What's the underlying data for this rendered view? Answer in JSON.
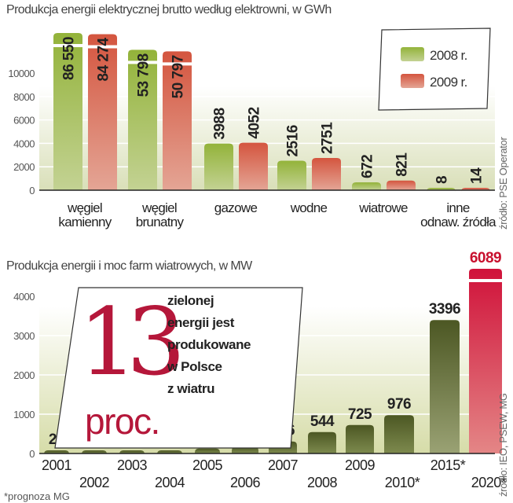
{
  "colors": {
    "green2008": "#9bb840",
    "red2009": "#d65a4a",
    "olive": "#56632a",
    "forecast2020": "#d4163c",
    "accent": "#b5173a"
  },
  "chart_data": [
    {
      "type": "bar",
      "title": "Produkcja energii elektrycznej brutto według elektrowni, w GWh",
      "categories": [
        [
          "węgiel",
          "kamienny"
        ],
        [
          "węgiel",
          "brunatny"
        ],
        [
          "gazowe"
        ],
        [
          "wodne"
        ],
        [
          "wiatrowe"
        ],
        [
          "inne",
          "odnaw. źródła"
        ]
      ],
      "series": [
        {
          "name": "2008 r.",
          "values": [
            86550,
            53798,
            3988,
            2516,
            672,
            8
          ],
          "labels": [
            "86 550",
            "53 798",
            "3988",
            "2516",
            "672",
            "8"
          ]
        },
        {
          "name": "2009 r.",
          "values": [
            84274,
            50797,
            4052,
            2751,
            821,
            14
          ],
          "labels": [
            "84 274",
            "50 797",
            "4052",
            "2751",
            "821",
            "14"
          ]
        }
      ],
      "yticks": [
        0,
        2000,
        4000,
        6000,
        8000,
        10000
      ],
      "ylim": [
        0,
        10000
      ],
      "axis_break": true,
      "legend": "top-right",
      "grid": true,
      "source": "źródło: PSE Operator"
    },
    {
      "type": "bar",
      "title": "Produkcja energii i moc farm wiatrowych, w MW",
      "categories": [
        "2001",
        "2002",
        "2003",
        "2004",
        "2005",
        "2006",
        "2007",
        "2008",
        "2009",
        "2010*",
        "2015*",
        "2020*"
      ],
      "values": [
        27,
        28,
        60,
        65,
        124,
        173,
        306,
        544,
        725,
        976,
        3396,
        6089
      ],
      "yticks": [
        0,
        1000,
        2000,
        3000,
        4000
      ],
      "ylim": [
        0,
        4000
      ],
      "axis_break": true,
      "grid": true,
      "footnote": "*prognoza MG",
      "source": "źródło: IEO, PSEW, MG",
      "callout": {
        "number": "13",
        "unit": "proc.",
        "lines": [
          "zielonej",
          "energii jest",
          "produkowane",
          "w Polsce",
          "z wiatru"
        ]
      }
    }
  ]
}
